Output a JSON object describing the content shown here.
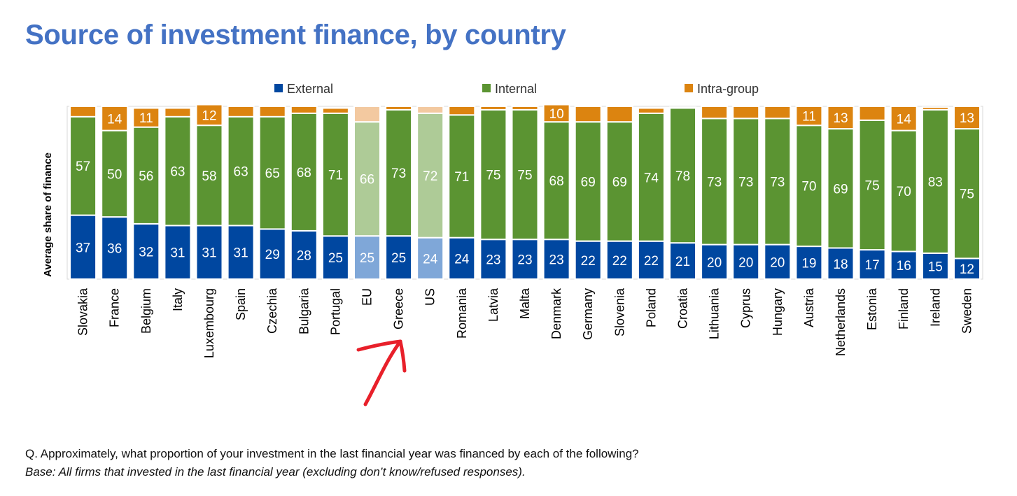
{
  "title": "Source of investment finance, by country",
  "chart_data": {
    "type": "bar",
    "stacked": true,
    "ylabel": "Average share of finance",
    "ylim": [
      0,
      100
    ],
    "legend_position": "top",
    "categories": [
      "Slovakia",
      "France",
      "Belgium",
      "Italy",
      "Luxembourg",
      "Spain",
      "Czechia",
      "Bulgaria",
      "Portugal",
      "EU",
      "Greece",
      "US",
      "Romania",
      "Latvia",
      "Malta",
      "Denmark",
      "Germany",
      "Slovenia",
      "Poland",
      "Croatia",
      "Lithuania",
      "Cyprus",
      "Hungary",
      "Austria",
      "Netherlands",
      "Estonia",
      "Finland",
      "Ireland",
      "Sweden"
    ],
    "highlighted_categories": [
      "EU",
      "US"
    ],
    "series": [
      {
        "name": "External",
        "color": "#0047A0",
        "highlight_color": "#7FA7D8",
        "values": [
          37,
          36,
          32,
          31,
          31,
          31,
          29,
          28,
          25,
          25,
          25,
          24,
          24,
          23,
          23,
          23,
          22,
          22,
          22,
          21,
          20,
          20,
          20,
          19,
          18,
          17,
          16,
          15,
          12
        ],
        "labels": [
          "37",
          "36",
          "32",
          "31",
          "31",
          "31",
          "29",
          "28",
          "25",
          "25",
          "25",
          "24",
          "24",
          "23",
          "23",
          "23",
          "22",
          "22",
          "22",
          "21",
          "20",
          "20",
          "20",
          "19",
          "18",
          "17",
          "16",
          "15",
          "12"
        ]
      },
      {
        "name": "Internal",
        "color": "#5B9432",
        "highlight_color": "#AECB97",
        "values": [
          57,
          50,
          56,
          63,
          58,
          63,
          65,
          68,
          71,
          66,
          73,
          72,
          71,
          75,
          75,
          68,
          69,
          69,
          74,
          78,
          73,
          73,
          73,
          70,
          69,
          75,
          70,
          83,
          75
        ],
        "labels": [
          "57",
          "50",
          "56",
          "63",
          "58",
          "63",
          "65",
          "68",
          "71",
          "66",
          "73",
          "72",
          "71",
          "75",
          "75",
          "68",
          "69",
          "69",
          "74",
          "78",
          "73",
          "73",
          "73",
          "70",
          "69",
          "75",
          "70",
          "83",
          "75"
        ]
      },
      {
        "name": "Intra-group",
        "color": "#DC8410",
        "highlight_color": "#F3C9A0",
        "values": [
          6,
          14,
          11,
          5,
          12,
          6,
          6,
          4,
          3,
          9,
          2,
          4,
          5,
          2,
          2,
          10,
          9,
          9,
          3,
          0.5,
          7,
          7,
          7,
          11,
          13,
          8,
          14,
          1.5,
          13
        ],
        "labels": [
          "",
          "14",
          "11",
          "",
          "12",
          "",
          "",
          "",
          "",
          "",
          "",
          "",
          "",
          "",
          "",
          "10",
          "",
          "",
          "",
          "",
          "",
          "",
          "",
          "11",
          "13",
          "",
          "14",
          "",
          "13"
        ]
      }
    ]
  },
  "note_question": "Q. Approximately, what proportion of your investment in the last financial year was financed by each of the following?",
  "note_base": "Base: All firms that invested in the last financial year (excluding don’t know/refused responses).",
  "annotation": {
    "color": "#E8202A",
    "target": "Greece"
  }
}
